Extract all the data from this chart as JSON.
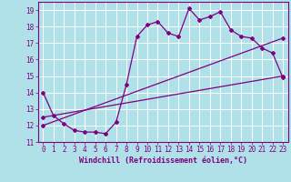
{
  "xlabel": "Windchill (Refroidissement éolien,°C)",
  "background_color": "#b0e0e8",
  "grid_color": "#ffffff",
  "line_color": "#800080",
  "xlim": [
    -0.5,
    23.5
  ],
  "ylim": [
    11,
    19.5
  ],
  "xticks": [
    0,
    1,
    2,
    3,
    4,
    5,
    6,
    7,
    8,
    9,
    10,
    11,
    12,
    13,
    14,
    15,
    16,
    17,
    18,
    19,
    20,
    21,
    22,
    23
  ],
  "yticks": [
    11,
    12,
    13,
    14,
    15,
    16,
    17,
    18,
    19
  ],
  "line1_x": [
    0,
    1,
    2,
    3,
    4,
    5,
    6,
    7,
    8,
    9,
    10,
    11,
    12,
    13,
    14,
    15,
    16,
    17,
    18,
    19,
    20,
    21,
    22,
    23
  ],
  "line1_y": [
    14.0,
    12.6,
    12.1,
    11.7,
    11.6,
    11.6,
    11.5,
    12.2,
    14.5,
    17.4,
    18.1,
    18.3,
    17.6,
    17.4,
    19.1,
    18.4,
    18.6,
    18.9,
    17.8,
    17.4,
    17.3,
    16.7,
    16.4,
    14.9
  ],
  "line2_x": [
    0,
    23
  ],
  "line2_y": [
    12.0,
    17.3
  ],
  "line3_x": [
    0,
    23
  ],
  "line3_y": [
    12.5,
    15.0
  ],
  "font_size_ticks": 5.5,
  "font_size_xlabel": 6.0,
  "lw": 0.9,
  "ms": 2.0
}
